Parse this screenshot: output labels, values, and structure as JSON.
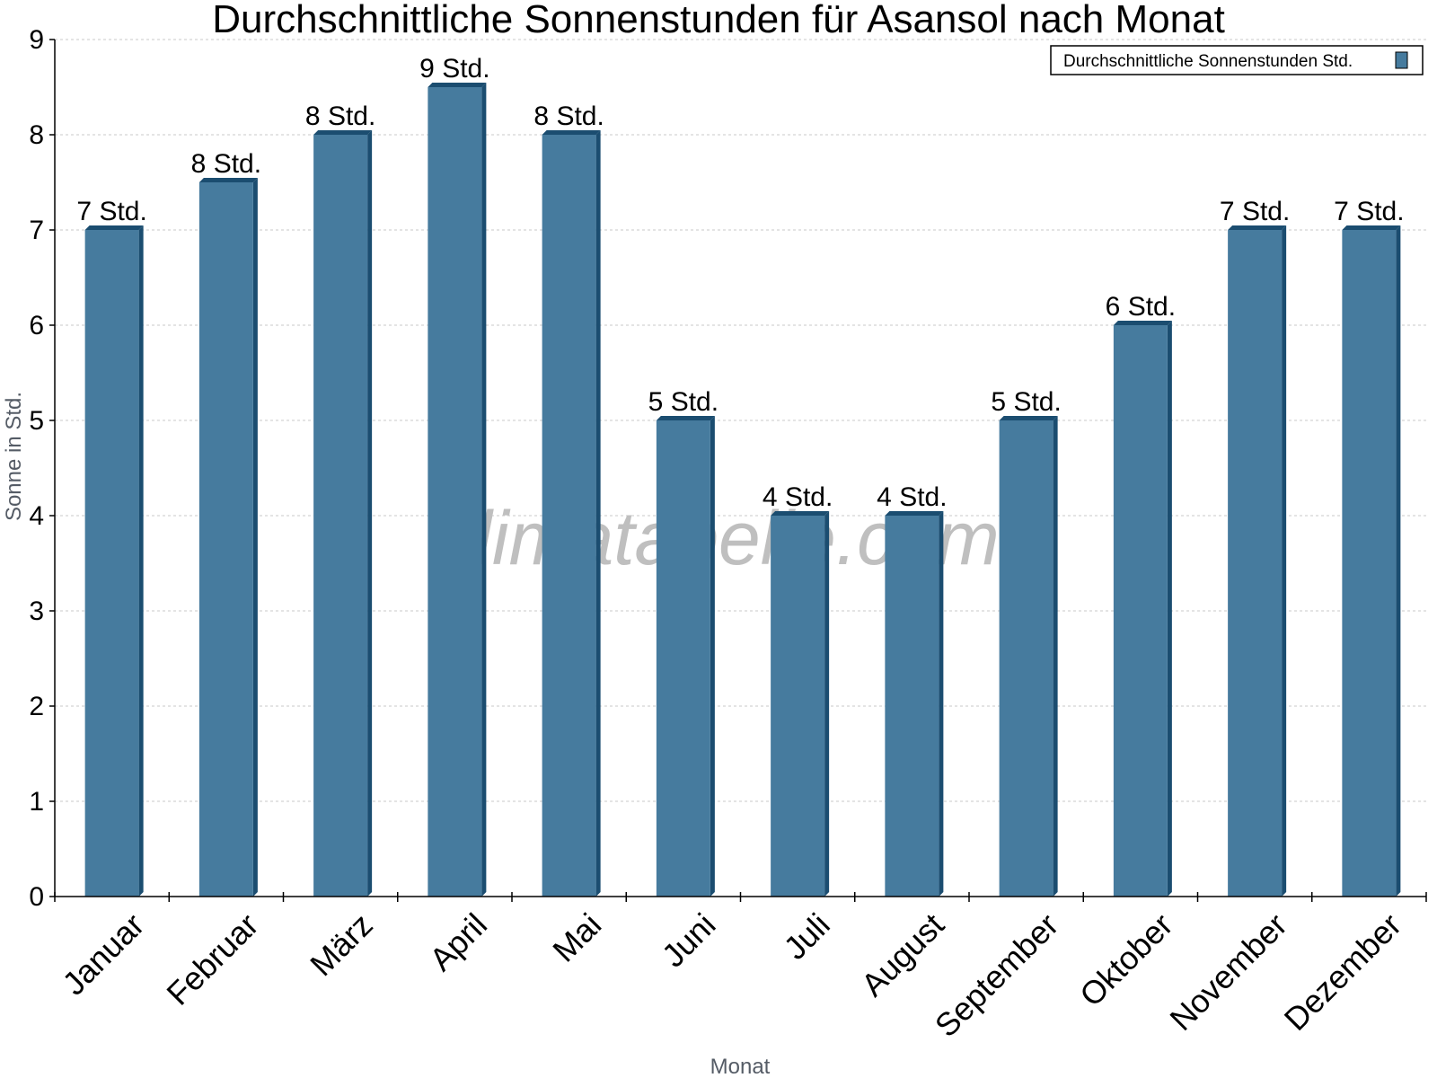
{
  "chart_data": {
    "type": "bar",
    "title": "Durchschnittliche Sonnenstunden für Asansol nach Monat",
    "xlabel": "Monat",
    "ylabel": "Sonne in Std.",
    "ylim": [
      0,
      9
    ],
    "yticks": [
      0,
      1,
      2,
      3,
      4,
      5,
      6,
      7,
      8,
      9
    ],
    "grid": true,
    "legend_position": "top-right",
    "categories": [
      "Januar",
      "Februar",
      "März",
      "April",
      "Mai",
      "Juni",
      "Juli",
      "August",
      "September",
      "Oktober",
      "November",
      "Dezember"
    ],
    "series": [
      {
        "name": "Durchschnittliche Sonnenstunden Std.",
        "values": [
          7,
          7.5,
          8,
          8.5,
          8,
          5,
          4,
          4,
          5,
          6,
          7,
          7
        ],
        "labels": [
          "7 Std.",
          "8 Std.",
          "8 Std.",
          "9 Std.",
          "8 Std.",
          "5 Std.",
          "4 Std.",
          "4 Std.",
          "5 Std.",
          "6 Std.",
          "7 Std.",
          "7 Std."
        ],
        "color": "#467b9e",
        "edge_color": "#1b4d70"
      }
    ]
  },
  "watermark": "klimatabelle.com"
}
